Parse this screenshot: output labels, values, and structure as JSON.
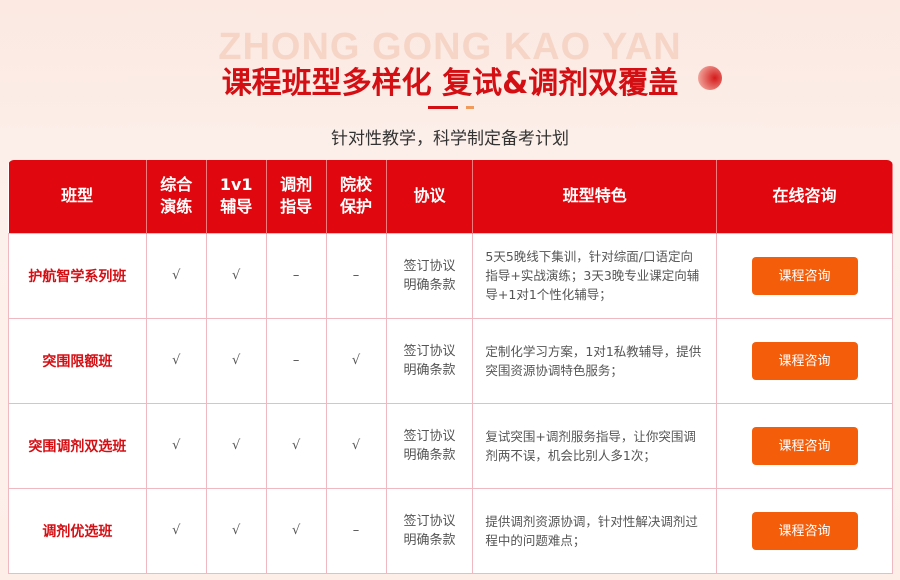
{
  "header": {
    "watermark": "ZHONG GONG KAO YAN",
    "title": "课程班型多样化 复试&调剂双覆盖",
    "subtitle": "针对性教学，科学制定备考计划"
  },
  "table": {
    "headers": [
      [
        "班型"
      ],
      [
        "综合",
        "演练"
      ],
      [
        "1v1",
        "辅导"
      ],
      [
        "调剂",
        "指导"
      ],
      [
        "院校",
        "保护"
      ],
      [
        "协议"
      ],
      [
        "班型特色"
      ],
      [
        "在线咨询"
      ]
    ],
    "rows": [
      {
        "name": "护航智学系列班",
        "c1": "√",
        "c2": "√",
        "c3": "–",
        "c4": "–",
        "agree1": "签订协议",
        "agree2": "明确条款",
        "feature": "5天5晚线下集训，针对综面/口语定向指导+实战演练；3天3晚专业课定向辅导+1对1个性化辅导；",
        "button": "课程咨询"
      },
      {
        "name": "突围限额班",
        "c1": "√",
        "c2": "√",
        "c3": "–",
        "c4": "√",
        "agree1": "签订协议",
        "agree2": "明确条款",
        "feature": "定制化学习方案，1对1私教辅导，提供突围资源协调特色服务；",
        "button": "课程咨询"
      },
      {
        "name": "突围调剂双选班",
        "c1": "√",
        "c2": "√",
        "c3": "√",
        "c4": "√",
        "agree1": "签订协议",
        "agree2": "明确条款",
        "feature": "复试突围+调剂服务指导，让你突围调剂两不误，机会比别人多1次；",
        "button": "课程咨询"
      },
      {
        "name": "调剂优选班",
        "c1": "√",
        "c2": "√",
        "c3": "√",
        "c4": "–",
        "agree1": "签订协议",
        "agree2": "明确条款",
        "feature": "提供调剂资源协调，针对性解决调剂过程中的问题难点；",
        "button": "课程咨询"
      }
    ]
  },
  "colors": {
    "primary": "#e0080e",
    "button": "#f45e0b"
  }
}
